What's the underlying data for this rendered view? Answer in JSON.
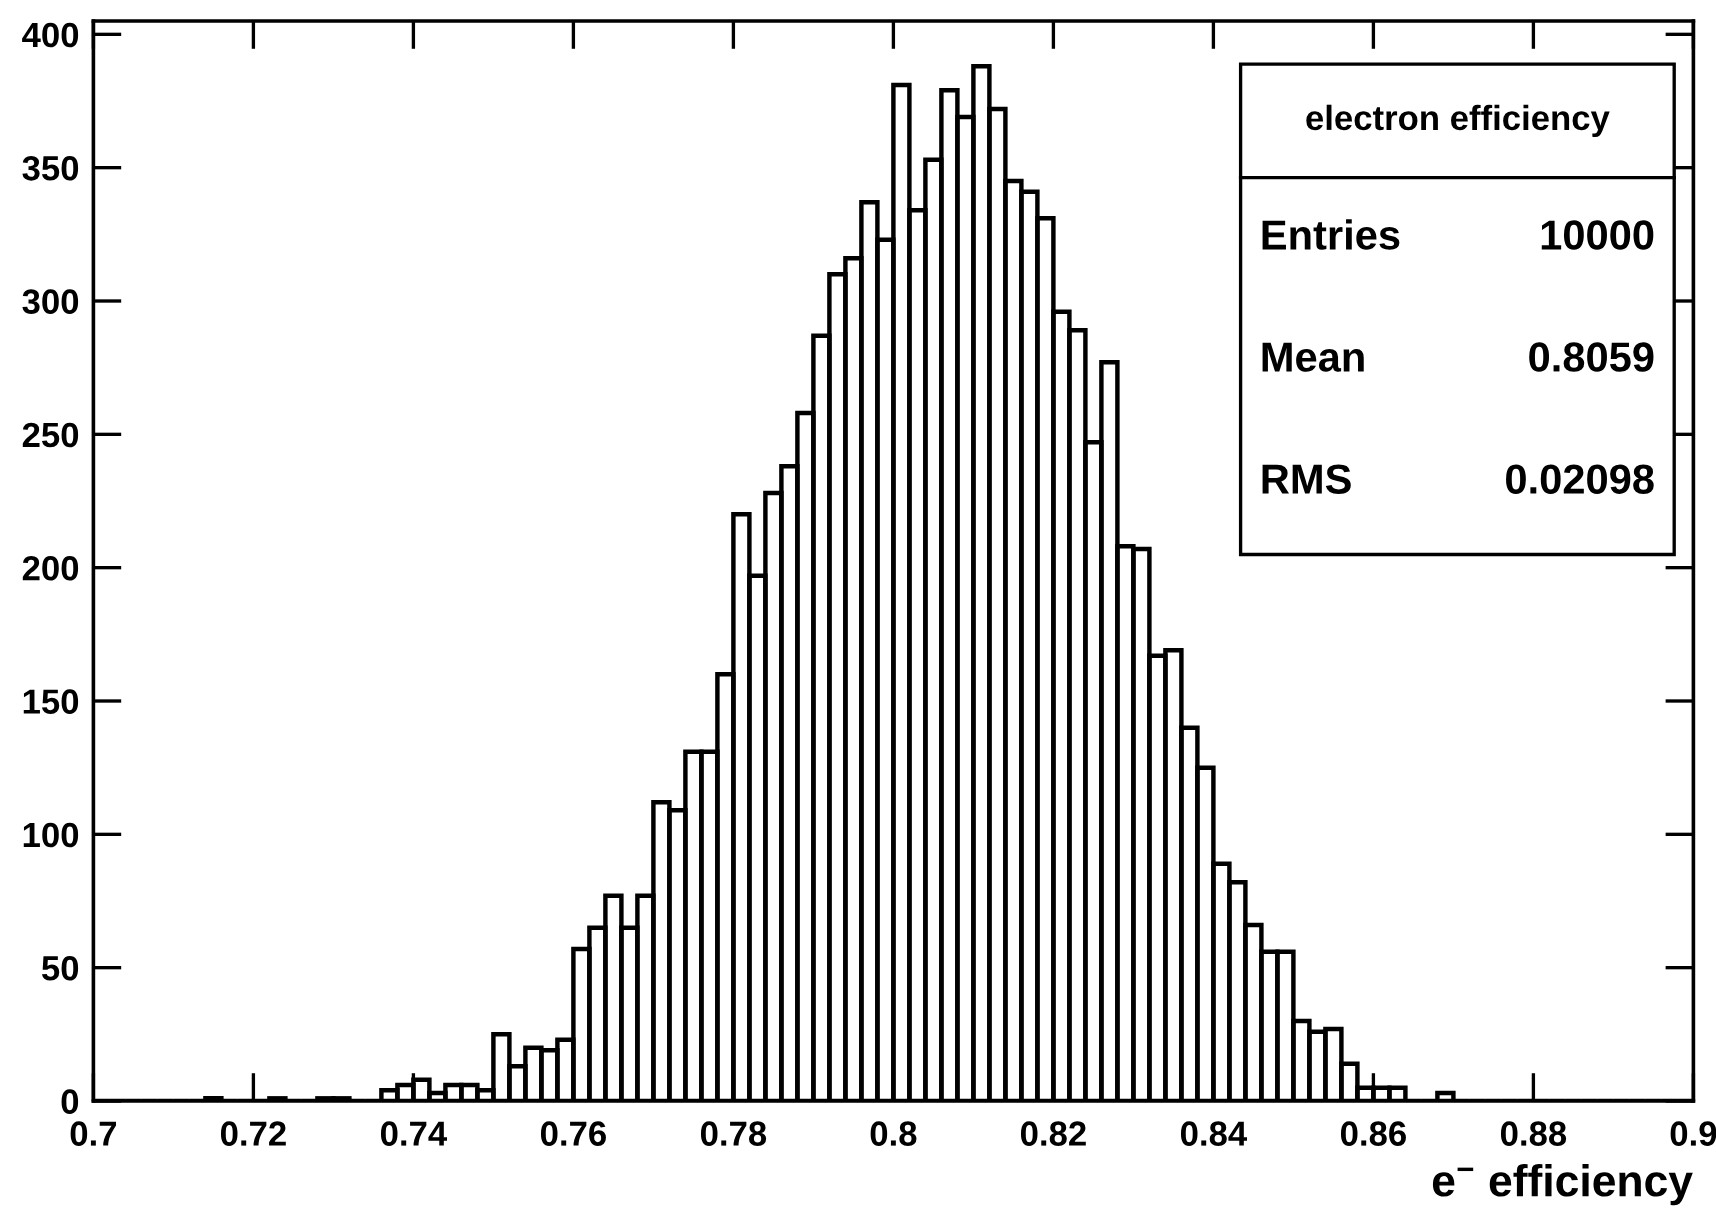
{
  "chart_data": {
    "type": "histogram",
    "xlabel": "e$^{−}$ efficiency",
    "bins": [
      0.7,
      0.702,
      0.704,
      0.706,
      0.708,
      0.71,
      0.712,
      0.714,
      0.716,
      0.718,
      0.72,
      0.722,
      0.724,
      0.726,
      0.728,
      0.73,
      0.732,
      0.734,
      0.736,
      0.738,
      0.74,
      0.742,
      0.744,
      0.746,
      0.748,
      0.75,
      0.752,
      0.754,
      0.756,
      0.758,
      0.76,
      0.762,
      0.764,
      0.766,
      0.768,
      0.77,
      0.772,
      0.774,
      0.776,
      0.778,
      0.78,
      0.782,
      0.784,
      0.786,
      0.788,
      0.79,
      0.792,
      0.794,
      0.796,
      0.798,
      0.8,
      0.802,
      0.804,
      0.806,
      0.808,
      0.81,
      0.812,
      0.814,
      0.816,
      0.818,
      0.82,
      0.822,
      0.824,
      0.826,
      0.828,
      0.83,
      0.832,
      0.834,
      0.836,
      0.838,
      0.84,
      0.842,
      0.844,
      0.846,
      0.848,
      0.85,
      0.852,
      0.854,
      0.856,
      0.858,
      0.86,
      0.862,
      0.864,
      0.866,
      0.868,
      0.87,
      0.872,
      0.874,
      0.876,
      0.878,
      0.88,
      0.882,
      0.884,
      0.886,
      0.888,
      0.89,
      0.892,
      0.894,
      0.896,
      0.898,
      0.9
    ],
    "values": [
      0,
      0,
      0,
      0,
      0,
      0,
      0,
      1,
      0,
      0,
      0,
      1,
      0,
      0,
      1,
      1,
      0,
      0,
      4,
      6,
      8,
      3,
      6,
      6,
      4,
      25,
      13,
      20,
      19,
      23,
      57,
      65,
      77,
      65,
      77,
      112,
      109,
      131,
      131,
      160,
      220,
      197,
      228,
      238,
      258,
      287,
      310,
      316,
      337,
      323,
      381,
      334,
      353,
      379,
      369,
      388,
      372,
      345,
      341,
      331,
      296,
      289,
      247,
      277,
      208,
      207,
      167,
      169,
      140,
      125,
      89,
      82,
      66,
      56,
      56,
      30,
      26,
      27,
      14,
      5,
      5,
      5,
      0,
      0,
      3,
      0,
      0,
      0,
      0,
      0,
      0,
      0,
      0,
      0,
      0,
      0,
      0,
      0,
      0,
      0
    ],
    "color": "#000000",
    "xlim": [
      0.7,
      0.9
    ],
    "ylim": [
      0,
      405
    ],
    "xticks": [
      0.7,
      0.72,
      0.74,
      0.76,
      0.78,
      0.8,
      0.82,
      0.84,
      0.86,
      0.88,
      0.9
    ],
    "yticks": [
      0,
      50,
      100,
      150,
      200,
      250,
      300,
      350,
      400
    ],
    "grid": false,
    "annotations": [
      "electron efficiency",
      "Entries",
      "10000",
      "Mean",
      "0.8059",
      "RMS",
      "0.02098"
    ]
  }
}
